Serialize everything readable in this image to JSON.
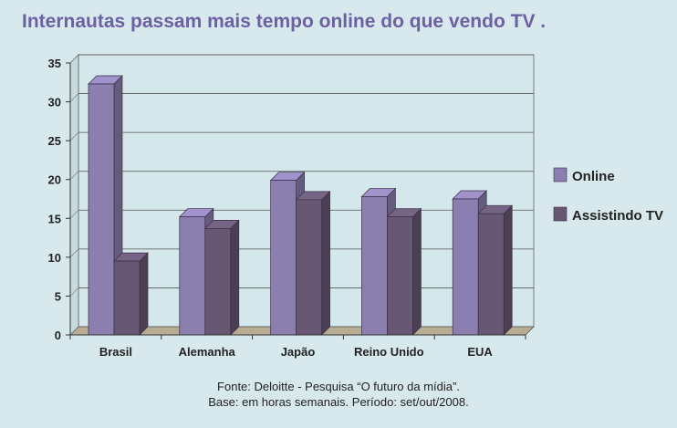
{
  "title": "Internautas passam mais tempo online do que vendo TV .",
  "source_line1": "Fonte: Deloitte - Pesquisa “O futuro da mídia”.",
  "source_line2": "Base: em horas semanais. Período: set/out/2008.",
  "chart_data": {
    "type": "bar",
    "categories": [
      "Brasil",
      "Alemanha",
      "Japão",
      "Reino Unido",
      "EUA"
    ],
    "series": [
      {
        "name": "Online",
        "values": [
          32.3,
          15.2,
          19.9,
          17.8,
          17.5
        ],
        "color": "#8b7fb0"
      },
      {
        "name": "Assistindo TV",
        "values": [
          9.5,
          13.7,
          17.4,
          15.2,
          15.6
        ],
        "color": "#675773"
      }
    ],
    "ylim": [
      0,
      35
    ],
    "yticks": [
      0,
      5,
      10,
      15,
      20,
      25,
      30,
      35
    ],
    "grid": true,
    "legend": "right",
    "xlabel": "",
    "ylabel": ""
  }
}
